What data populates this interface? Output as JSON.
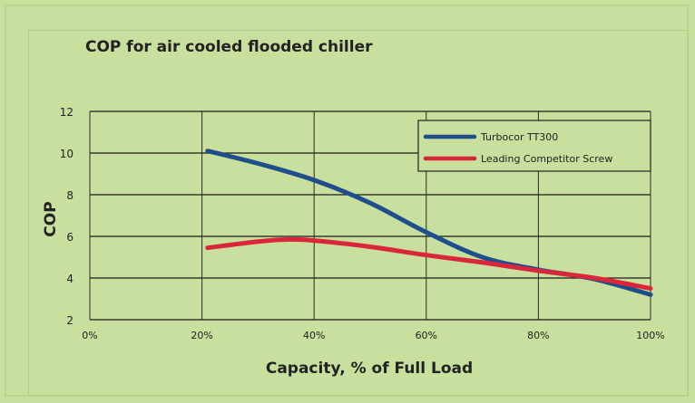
{
  "chart_data": {
    "type": "line",
    "title": "COP for air cooled flooded chiller",
    "xlabel": "Capacity, % of Full Load",
    "ylabel": "COP",
    "xlim": [
      0,
      100
    ],
    "ylim": [
      2,
      12
    ],
    "x_ticks": [
      0,
      20,
      40,
      60,
      80,
      100
    ],
    "x_tick_labels": [
      "0%",
      "20%",
      "40%",
      "60%",
      "80%",
      "100%"
    ],
    "y_ticks": [
      2,
      4,
      6,
      8,
      10,
      12
    ],
    "y_tick_labels": [
      "2",
      "4",
      "6",
      "8",
      "10",
      "12"
    ],
    "grid": true,
    "legend_position": "top-right",
    "series": [
      {
        "name": "Turbocor TT300",
        "color": "#1f4e8c",
        "x": [
          21,
          30,
          40,
          50,
          60,
          70,
          80,
          90,
          100
        ],
        "y": [
          10.1,
          9.5,
          8.7,
          7.6,
          6.2,
          5.0,
          4.4,
          3.95,
          3.2
        ]
      },
      {
        "name": "Leading Competitor Screw",
        "color": "#d9263a",
        "x": [
          21,
          30,
          35,
          40,
          50,
          60,
          70,
          80,
          90,
          100
        ],
        "y": [
          5.45,
          5.75,
          5.85,
          5.8,
          5.5,
          5.1,
          4.75,
          4.35,
          4.0,
          3.5
        ]
      }
    ]
  }
}
